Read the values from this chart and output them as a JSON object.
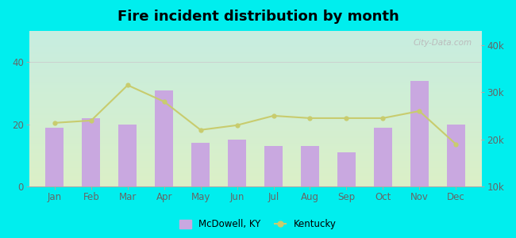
{
  "title": "Fire incident distribution by month",
  "months": [
    "Jan",
    "Feb",
    "Mar",
    "Apr",
    "May",
    "Jun",
    "Jul",
    "Aug",
    "Sep",
    "Oct",
    "Nov",
    "Dec"
  ],
  "mcdowell_values": [
    19,
    22,
    20,
    31,
    14,
    15,
    13,
    13,
    11,
    19,
    34,
    20
  ],
  "kentucky_values": [
    23500,
    24000,
    31500,
    28000,
    22000,
    23000,
    25000,
    24500,
    24500,
    24500,
    26000,
    19000
  ],
  "bar_color": "#c9a8e0",
  "line_color": "#c8cc6e",
  "line_marker": "o",
  "outer_bg": "#00eeee",
  "left_ylim": [
    0,
    50
  ],
  "right_ylim": [
    10000,
    43000
  ],
  "left_yticks": [
    0,
    20,
    40
  ],
  "right_yticks": [
    10000,
    20000,
    30000,
    40000
  ],
  "right_yticklabels": [
    "10k",
    "20k",
    "30k",
    "40k"
  ],
  "watermark": "City-Data.com",
  "legend_mcdowell": "McDowell, KY",
  "legend_kentucky": "Kentucky"
}
